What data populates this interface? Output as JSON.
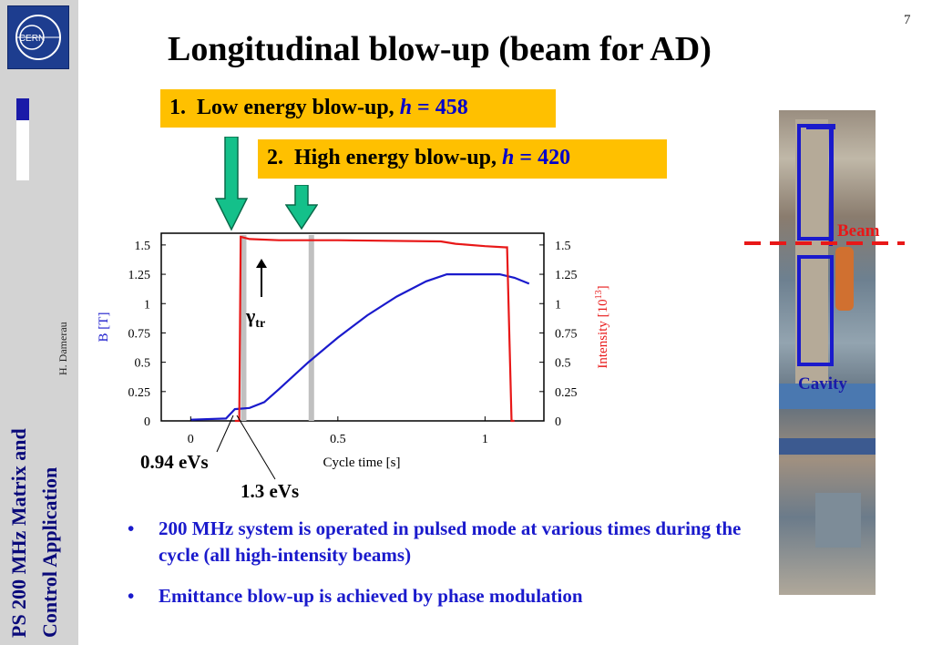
{
  "sidebar": {
    "title_line1": "PS 200 MHz Matrix and",
    "title_line2": "Control Application",
    "author": "H. Damerau",
    "logo_text": "CERN"
  },
  "page_number": "7",
  "title": "Longitudinal blow-up (beam for AD)",
  "items": [
    {
      "number": "1.",
      "label": "Low energy blow-up, ",
      "h_symbol": "h",
      "eq": " = 458"
    },
    {
      "number": "2.",
      "label": "High energy blow-up, ",
      "h_symbol": "h",
      "eq": " = 420"
    }
  ],
  "photo_labels": {
    "beam": "Beam",
    "cavity": "Cavity"
  },
  "emittance_labels": [
    "0.94 eVs",
    "1.3 eVs"
  ],
  "gamma_label": "γ",
  "gamma_sub": "tr",
  "bullets": [
    "200 MHz system is operated in pulsed mode at various times during the cycle (all high-intensity beams)",
    "Emittance blow-up is achieved by phase modulation"
  ],
  "colors": {
    "accent_box": "#ffc000",
    "title_blue": "#0a0a7a",
    "bullet_blue": "#1a1acc",
    "red": "#e81818",
    "blue": "#1a1acc",
    "green_arrow": "#14c08a"
  },
  "chart_data": {
    "type": "line",
    "xlabel": "Cycle time [s]",
    "ylabel_left": "B [T]",
    "ylabel_right_main": "Intensity [10",
    "ylabel_right_sup": "13",
    "ylabel_right_end": "]",
    "xlim": [
      -0.1,
      1.2
    ],
    "ylim": [
      0,
      1.6
    ],
    "x_ticks": [
      "0",
      "0.5",
      "1"
    ],
    "x_tick_values": [
      0,
      0.5,
      1
    ],
    "y_ticks_left": [
      "0",
      "0.25",
      "0.5",
      "0.75",
      "1",
      "1.25",
      "1.5"
    ],
    "y_ticks_right": [
      "0",
      "0.25",
      "0.5",
      "0.75",
      "1",
      "1.25",
      "1.5"
    ],
    "y_tick_values": [
      0,
      0.25,
      0.5,
      0.75,
      1,
      1.25,
      1.5
    ],
    "series": [
      {
        "name": "B [T]",
        "color": "#1a1acc",
        "x": [
          0,
          0.12,
          0.15,
          0.2,
          0.25,
          0.3,
          0.4,
          0.5,
          0.6,
          0.7,
          0.8,
          0.87,
          1.0,
          1.05,
          1.1,
          1.15
        ],
        "y": [
          0.01,
          0.02,
          0.1,
          0.11,
          0.16,
          0.27,
          0.5,
          0.71,
          0.9,
          1.06,
          1.19,
          1.25,
          1.25,
          1.25,
          1.22,
          1.17
        ]
      },
      {
        "name": "Intensity [10^13]",
        "color": "#e81818",
        "x": [
          0.15,
          0.165,
          0.17,
          0.2,
          0.3,
          0.5,
          0.85,
          0.9,
          1.0,
          1.07,
          1.075,
          1.09,
          1.1
        ],
        "y": [
          0.0,
          0.0,
          1.57,
          1.55,
          1.54,
          1.54,
          1.53,
          1.51,
          1.49,
          1.48,
          1.48,
          0.0,
          0.0
        ]
      }
    ],
    "blowup_markers_x": [
      0.18,
      0.41
    ]
  }
}
